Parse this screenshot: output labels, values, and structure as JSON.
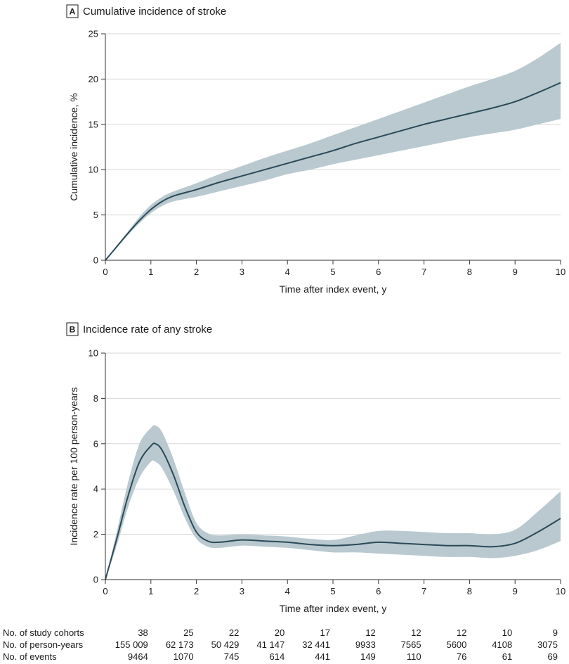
{
  "colors": {
    "line": "#2b4a58",
    "band": "#b9c9cf",
    "grid": "#d7d7d7",
    "axis": "#333333"
  },
  "chart_data": [
    {
      "type": "line",
      "panel_letter": "A",
      "title": "Cumulative incidence of stroke",
      "xlabel": "Time after index event, y",
      "ylabel": "Cumulative incidence, %",
      "xlim": [
        0,
        10
      ],
      "ylim": [
        0,
        25
      ],
      "xticks": [
        "0",
        "1",
        "2",
        "3",
        "4",
        "5",
        "6",
        "7",
        "8",
        "9",
        "10"
      ],
      "yticks": [
        "0",
        "5",
        "10",
        "15",
        "20",
        "25"
      ],
      "grid": true,
      "series": [
        {
          "name": "Cumulative incidence",
          "x": [
            0,
            0.25,
            0.5,
            0.75,
            1,
            1.25,
            1.5,
            2,
            2.5,
            3,
            3.5,
            4,
            4.5,
            5,
            5.5,
            6,
            6.5,
            7,
            7.5,
            8,
            8.5,
            9,
            9.5,
            10
          ],
          "y": [
            0,
            1.5,
            3.0,
            4.4,
            5.6,
            6.5,
            7.1,
            7.8,
            8.6,
            9.3,
            10.0,
            10.7,
            11.4,
            12.1,
            12.9,
            13.6,
            14.3,
            15.0,
            15.6,
            16.2,
            16.8,
            17.5,
            18.5,
            19.6
          ],
          "lower": [
            0,
            1.4,
            2.8,
            4.1,
            5.2,
            6.0,
            6.5,
            7.0,
            7.6,
            8.2,
            8.8,
            9.5,
            10.0,
            10.6,
            11.1,
            11.6,
            12.1,
            12.6,
            13.1,
            13.6,
            14.0,
            14.4,
            15.0,
            15.6
          ],
          "upper": [
            0,
            1.6,
            3.2,
            4.8,
            6.1,
            7.0,
            7.6,
            8.5,
            9.5,
            10.4,
            11.3,
            12.1,
            12.9,
            13.8,
            14.7,
            15.6,
            16.5,
            17.4,
            18.3,
            19.2,
            20.0,
            20.9,
            22.3,
            24.0
          ]
        }
      ]
    },
    {
      "type": "line",
      "panel_letter": "B",
      "title": "Incidence rate of any stroke",
      "xlabel": "Time after index event, y",
      "ylabel": "Incidence rate per 100 person-years",
      "xlim": [
        0,
        10
      ],
      "ylim": [
        0,
        10
      ],
      "xticks": [
        "0",
        "1",
        "2",
        "3",
        "4",
        "5",
        "6",
        "7",
        "8",
        "9",
        "10"
      ],
      "yticks": [
        "0",
        "2",
        "4",
        "6",
        "8",
        "10"
      ],
      "grid": true,
      "series": [
        {
          "name": "Incidence rate",
          "x": [
            0,
            0.25,
            0.5,
            0.75,
            1,
            1.1,
            1.25,
            1.5,
            1.75,
            2,
            2.25,
            2.5,
            3,
            3.5,
            4,
            4.5,
            5,
            5.5,
            6,
            6.5,
            7,
            7.5,
            8,
            8.5,
            9,
            9.5,
            10
          ],
          "y": [
            0,
            1.8,
            3.7,
            5.2,
            5.9,
            6.0,
            5.7,
            4.6,
            3.2,
            2.1,
            1.7,
            1.65,
            1.75,
            1.7,
            1.65,
            1.55,
            1.5,
            1.55,
            1.65,
            1.6,
            1.55,
            1.5,
            1.5,
            1.45,
            1.6,
            2.1,
            2.7
          ],
          "lower": [
            0,
            1.5,
            3.2,
            4.5,
            5.2,
            5.2,
            4.9,
            3.9,
            2.7,
            1.8,
            1.45,
            1.4,
            1.5,
            1.45,
            1.4,
            1.3,
            1.2,
            1.2,
            1.15,
            1.1,
            1.05,
            1.0,
            1.0,
            0.95,
            1.05,
            1.3,
            1.7
          ],
          "upper": [
            0,
            2.1,
            4.3,
            6.0,
            6.7,
            6.8,
            6.5,
            5.3,
            3.8,
            2.5,
            2.05,
            1.95,
            2.0,
            1.95,
            1.9,
            1.8,
            1.75,
            1.95,
            2.15,
            2.15,
            2.1,
            2.05,
            2.05,
            2.0,
            2.2,
            3.0,
            3.9
          ]
        }
      ]
    }
  ],
  "risk_table": {
    "times": [
      "0",
      "1",
      "2",
      "3",
      "4",
      "5",
      "6",
      "7",
      "8",
      "9",
      "10"
    ],
    "rows": [
      {
        "label": "No. of study cohorts",
        "values": [
          "38",
          "25",
          "22",
          "20",
          "17",
          "12",
          "12",
          "12",
          "10",
          "9"
        ]
      },
      {
        "label": "No. of person-years",
        "values": [
          "155 009",
          "62 173",
          "50 429",
          "41 147",
          "32 441",
          "9933",
          "7565",
          "5600",
          "4108",
          "3075"
        ]
      },
      {
        "label": "No. of events",
        "values": [
          "9464",
          "1070",
          "745",
          "614",
          "441",
          "149",
          "110",
          "76",
          "61",
          "69"
        ]
      }
    ]
  }
}
